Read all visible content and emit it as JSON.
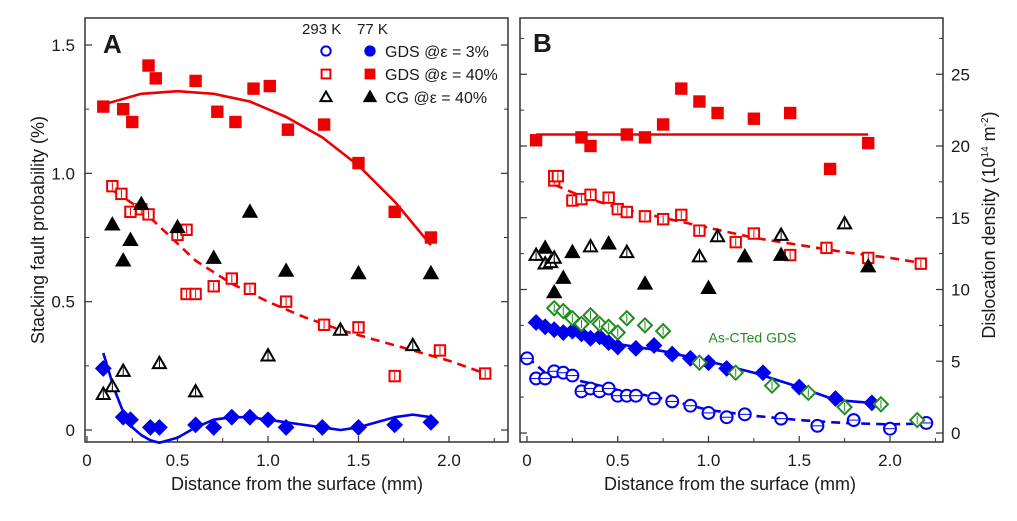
{
  "chart_data": [
    {
      "panel": "A",
      "type": "scatter",
      "panel_label": "A",
      "xlabel": "Distance from the surface (mm)",
      "ylabel": "Stacking fault probability (%)",
      "xlim": [
        0,
        2.3
      ],
      "ylim": [
        -0.05,
        1.6
      ],
      "xticks": [
        0,
        0.5,
        1.0,
        1.5,
        2.0
      ],
      "xtick_labels": [
        "0",
        "0.5",
        "1.0",
        "1.5",
        "2.0"
      ],
      "yticks": [
        0,
        0.5,
        1.0,
        1.5
      ],
      "ytick_labels": [
        "0",
        "0.5",
        "1.0",
        "1.5"
      ],
      "grid": false,
      "legend": {
        "placement": "top-right",
        "header": [
          "293 K",
          "77 K"
        ],
        "entries": [
          {
            "label": "GDS @ε = 3%",
            "color": "#0000ee",
            "marker": "circle"
          },
          {
            "label": "GDS @ε = 40%",
            "color": "#ee0000",
            "marker": "square"
          },
          {
            "label": "CG @ε = 40%",
            "color": "#000000",
            "marker": "triangle"
          }
        ]
      },
      "series": [
        {
          "name": "GDS 40% 77 K",
          "color": "#ee0000",
          "marker": "square",
          "filled": true,
          "x": [
            0.09,
            0.2,
            0.25,
            0.34,
            0.38,
            0.6,
            0.72,
            0.82,
            0.92,
            1.01,
            1.11,
            1.31,
            1.5,
            1.7,
            1.9
          ],
          "y": [
            1.26,
            1.25,
            1.2,
            1.42,
            1.37,
            1.36,
            1.24,
            1.2,
            1.33,
            1.34,
            1.17,
            1.19,
            1.04,
            0.85,
            0.75
          ]
        },
        {
          "name": "GDS 40% 293 K",
          "color": "#ee0000",
          "marker": "square",
          "filled": false,
          "x": [
            0.14,
            0.19,
            0.24,
            0.3,
            0.34,
            0.5,
            0.55,
            0.55,
            0.6,
            0.7,
            0.8,
            0.9,
            1.1,
            1.31,
            1.5,
            1.7,
            1.95,
            2.2
          ],
          "y": [
            0.95,
            0.92,
            0.85,
            0.86,
            0.84,
            0.76,
            0.78,
            0.53,
            0.53,
            0.56,
            0.59,
            0.55,
            0.5,
            0.41,
            0.4,
            0.21,
            0.31,
            0.22
          ]
        },
        {
          "name": "CG 40% 77 K",
          "color": "#000000",
          "marker": "triangle",
          "filled": true,
          "x": [
            0.14,
            0.2,
            0.24,
            0.3,
            0.5,
            0.7,
            0.9,
            1.1,
            1.5,
            1.9
          ],
          "y": [
            0.8,
            0.66,
            0.74,
            0.88,
            0.79,
            0.67,
            0.85,
            0.62,
            0.61,
            0.61
          ]
        },
        {
          "name": "CG 40% 293 K",
          "color": "#000000",
          "marker": "triangle",
          "filled": false,
          "x": [
            0.09,
            0.14,
            0.2,
            0.4,
            0.6,
            1.0,
            1.4,
            1.8
          ],
          "y": [
            0.14,
            0.17,
            0.23,
            0.26,
            0.15,
            0.29,
            0.39,
            0.33
          ]
        },
        {
          "name": "GDS 3% 77 K",
          "color": "#0000ee",
          "marker": "diamond",
          "filled": true,
          "x": [
            0.09,
            0.2,
            0.24,
            0.35,
            0.4,
            0.6,
            0.7,
            0.8,
            0.9,
            1.0,
            1.1,
            1.3,
            1.5,
            1.7,
            1.9
          ],
          "y": [
            0.24,
            0.05,
            0.04,
            0.01,
            0.01,
            0.02,
            0.01,
            0.05,
            0.05,
            0.04,
            0.01,
            0.01,
            0.01,
            0.02,
            0.03
          ]
        }
      ],
      "fits": [
        {
          "name": "GDS 40% 77 K fit",
          "color": "#ee0000",
          "style": "solid",
          "x": [
            0.1,
            0.3,
            0.5,
            0.7,
            0.9,
            1.1,
            1.3,
            1.5,
            1.7,
            1.9
          ],
          "y": [
            1.27,
            1.31,
            1.32,
            1.31,
            1.28,
            1.22,
            1.14,
            1.03,
            0.89,
            0.72
          ]
        },
        {
          "name": "GDS 40% 293 K fit",
          "color": "#ee0000",
          "style": "dashed",
          "x": [
            0.15,
            0.3,
            0.45,
            0.6,
            0.8,
            1.0,
            1.2,
            1.4,
            1.6,
            1.8,
            2.0,
            2.2
          ],
          "y": [
            0.93,
            0.86,
            0.76,
            0.66,
            0.57,
            0.5,
            0.44,
            0.39,
            0.35,
            0.31,
            0.27,
            0.22
          ]
        },
        {
          "name": "GDS 3% 77 K fit",
          "color": "#0000ee",
          "style": "solid",
          "x": [
            0.09,
            0.15,
            0.2,
            0.25,
            0.3,
            0.35,
            0.4,
            0.5,
            0.6,
            0.7,
            0.8,
            0.9,
            1.0,
            1.1,
            1.2,
            1.3,
            1.4,
            1.5,
            1.6,
            1.7,
            1.8,
            1.9
          ],
          "y": [
            0.3,
            0.16,
            0.07,
            0.01,
            -0.02,
            -0.04,
            -0.05,
            -0.03,
            0.01,
            0.04,
            0.05,
            0.05,
            0.04,
            0.03,
            0.02,
            0.01,
            0.0,
            0.01,
            0.03,
            0.05,
            0.06,
            0.05
          ]
        }
      ]
    },
    {
      "panel": "B",
      "type": "scatter",
      "panel_label": "B",
      "xlabel": "Distance from the surface (mm)",
      "ylabel": "Dislocation density (10¹⁴ m⁻²)",
      "ylabel_main": "Dislocation density (10",
      "ylabel_sup1": "14",
      "ylabel_mid": " m",
      "ylabel_sup2": "-2",
      "ylabel_end": ")",
      "xlim": [
        -0.05,
        2.25
      ],
      "ylim": [
        -0.5,
        29.5
      ],
      "xticks": [
        0,
        0.5,
        1.0,
        1.5,
        2.0
      ],
      "xtick_labels": [
        "0",
        "0.5",
        "1.0",
        "1.5",
        "2.0"
      ],
      "yticks": [
        0,
        5,
        10,
        15,
        20,
        25
      ],
      "ytick_labels": [
        "0",
        "5",
        "10",
        "15",
        "20",
        "25"
      ],
      "grid": false,
      "annotation": {
        "text": "As-CTed GDS",
        "color": "#228b22",
        "x": 1.0,
        "y": 6.3
      },
      "series": [
        {
          "name": "GDS 40% 77 K",
          "color": "#ee0000",
          "marker": "square",
          "filled": true,
          "x": [
            0.05,
            0.3,
            0.35,
            0.55,
            0.65,
            0.75,
            0.85,
            0.95,
            1.05,
            1.25,
            1.45,
            1.67,
            1.88
          ],
          "y": [
            20.4,
            20.6,
            20.0,
            20.8,
            20.6,
            21.5,
            24.0,
            23.1,
            22.3,
            21.9,
            22.3,
            18.4,
            20.2
          ]
        },
        {
          "name": "GDS 40% 293 K",
          "color": "#ee0000",
          "marker": "square",
          "filled": false,
          "x": [
            0.15,
            0.15,
            0.17,
            0.25,
            0.3,
            0.35,
            0.45,
            0.5,
            0.55,
            0.65,
            0.75,
            0.85,
            0.95,
            1.15,
            1.25,
            1.45,
            1.65,
            1.88,
            2.17
          ],
          "y": [
            17.6,
            17.9,
            17.9,
            16.2,
            16.3,
            16.6,
            16.4,
            15.6,
            15.4,
            15.1,
            14.9,
            15.2,
            14.1,
            13.3,
            13.9,
            12.4,
            12.9,
            12.2,
            11.8
          ]
        },
        {
          "name": "CG 40% 77 K",
          "color": "#000000",
          "marker": "triangle",
          "filled": true,
          "x": [
            0.1,
            0.15,
            0.2,
            0.25,
            0.45,
            0.65,
            1.0,
            1.2,
            1.4,
            1.88
          ],
          "y": [
            12.9,
            9.8,
            10.8,
            12.6,
            13.2,
            10.4,
            10.1,
            12.3,
            12.4,
            11.6
          ]
        },
        {
          "name": "CG 40% 293 K",
          "color": "#000000",
          "marker": "triangle",
          "filled": false,
          "x": [
            0.05,
            0.1,
            0.13,
            0.15,
            0.35,
            0.55,
            0.95,
            1.05,
            1.4,
            1.75
          ],
          "y": [
            12.4,
            11.8,
            11.9,
            12.2,
            13.0,
            12.6,
            12.3,
            13.7,
            13.8,
            14.6
          ]
        },
        {
          "name": "GDS 3% 77 K",
          "color": "#0000ee",
          "marker": "diamond",
          "filled": true,
          "x": [
            0.05,
            0.1,
            0.15,
            0.2,
            0.25,
            0.3,
            0.35,
            0.4,
            0.45,
            0.5,
            0.6,
            0.7,
            0.8,
            0.9,
            1.0,
            1.1,
            1.3,
            1.5,
            1.7,
            1.9
          ],
          "y": [
            7.7,
            7.4,
            7.2,
            7.0,
            7.1,
            6.9,
            6.6,
            6.7,
            6.3,
            6.0,
            5.9,
            6.1,
            5.5,
            5.2,
            4.9,
            4.5,
            4.2,
            3.2,
            2.4,
            2.1
          ]
        },
        {
          "name": "GDS 3% 293 K",
          "color": "#0000ee",
          "marker": "circle",
          "filled": false,
          "x": [
            0.0,
            0.05,
            0.1,
            0.15,
            0.2,
            0.25,
            0.3,
            0.35,
            0.4,
            0.45,
            0.5,
            0.55,
            0.6,
            0.7,
            0.8,
            0.9,
            1.0,
            1.1,
            1.2,
            1.4,
            1.6,
            1.8,
            2.0,
            2.2
          ],
          "y": [
            5.2,
            3.8,
            3.8,
            4.3,
            4.2,
            4.0,
            2.9,
            3.1,
            2.9,
            3.1,
            2.6,
            2.6,
            2.6,
            2.4,
            2.2,
            1.9,
            1.4,
            1.1,
            1.3,
            1.0,
            0.5,
            0.9,
            0.3,
            0.7
          ]
        },
        {
          "name": "As-CTed GDS",
          "color": "#228b22",
          "marker": "diamond",
          "filled": false,
          "x": [
            0.15,
            0.2,
            0.25,
            0.3,
            0.35,
            0.4,
            0.45,
            0.5,
            0.55,
            0.65,
            0.75,
            0.95,
            1.15,
            1.35,
            1.55,
            1.75,
            1.95,
            2.15
          ],
          "y": [
            8.7,
            8.5,
            8.0,
            7.6,
            8.2,
            7.6,
            7.4,
            7.0,
            8.0,
            7.5,
            7.1,
            4.9,
            4.2,
            3.3,
            2.8,
            1.8,
            2.0,
            0.9
          ]
        }
      ],
      "fits": [
        {
          "name": "GDS 40% 77 K fit",
          "color": "#ee0000",
          "style": "solid",
          "x": [
            0.05,
            1.88
          ],
          "y": [
            20.8,
            20.8
          ]
        },
        {
          "name": "GDS 40% 293 K fit",
          "color": "#ee0000",
          "style": "dashed",
          "x": [
            0.15,
            0.3,
            0.5,
            0.75,
            1.0,
            1.25,
            1.5,
            1.75,
            2.0,
            2.2
          ],
          "y": [
            17.3,
            16.5,
            15.7,
            15.0,
            14.3,
            13.6,
            13.1,
            12.6,
            12.2,
            11.8
          ]
        },
        {
          "name": "GDS 3% 77 K fit",
          "color": "#0000ee",
          "style": "solid",
          "x": [
            0.05,
            0.3,
            0.5,
            0.75,
            1.0,
            1.25,
            1.5,
            1.7,
            1.9
          ],
          "y": [
            7.6,
            6.9,
            6.2,
            5.7,
            5.0,
            4.2,
            3.2,
            2.3,
            2.1
          ]
        },
        {
          "name": "GDS 3% 293 K fit",
          "color": "#0000ee",
          "style": "dashed",
          "x": [
            0.0,
            0.1,
            0.3,
            0.5,
            0.75,
            1.0,
            1.25,
            1.5,
            1.75,
            2.0,
            2.25
          ],
          "y": [
            5.3,
            4.2,
            3.6,
            3.0,
            2.4,
            1.6,
            1.2,
            0.9,
            0.7,
            0.6,
            0.7
          ]
        }
      ]
    }
  ]
}
